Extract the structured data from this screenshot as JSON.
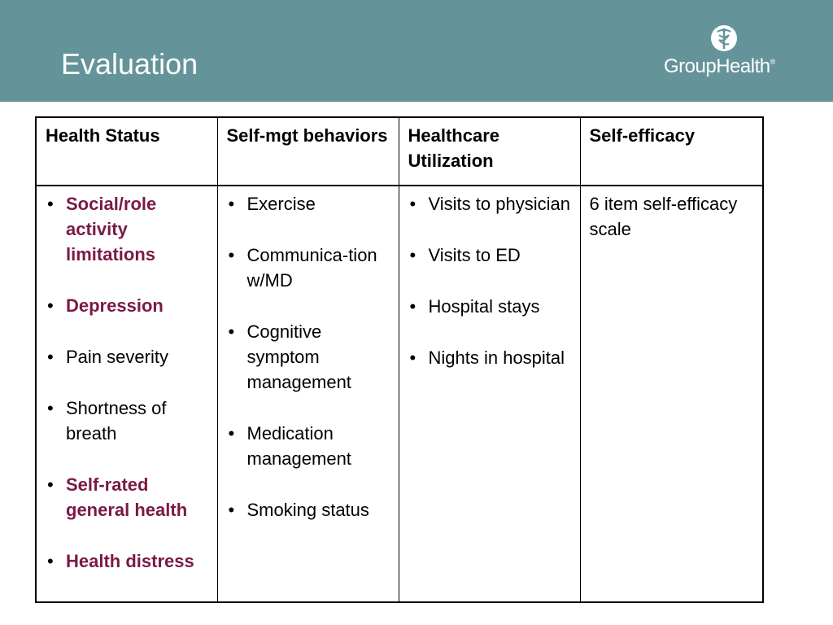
{
  "slide": {
    "title": "Evaluation",
    "brand": {
      "name": "GroupHealth",
      "mark": "®"
    },
    "colors": {
      "header": "#649499",
      "highlight": "#7a1a45"
    }
  },
  "table": {
    "headers": [
      "Health Status",
      "Self-mgt behaviors",
      "Healthcare Utilization",
      "Self-efficacy"
    ],
    "health_status": [
      {
        "text": "Social/role activity limitations",
        "highlight": true
      },
      {
        "text": "Depression",
        "highlight": true
      },
      {
        "text": "Pain severity",
        "highlight": false
      },
      {
        "text": "Shortness of breath",
        "highlight": false
      },
      {
        "text": "Self-rated general health",
        "highlight": true
      },
      {
        "text": "Health distress",
        "highlight": true
      }
    ],
    "self_mgt": [
      "Exercise",
      "Communica-tion w/MD",
      "Cognitive symptom management",
      "Medication management",
      "Smoking status"
    ],
    "utilization": [
      "Visits to physician",
      "Visits to ED",
      "Hospital stays",
      "Nights in hospital"
    ],
    "self_efficacy": "6 item self-efficacy scale"
  }
}
